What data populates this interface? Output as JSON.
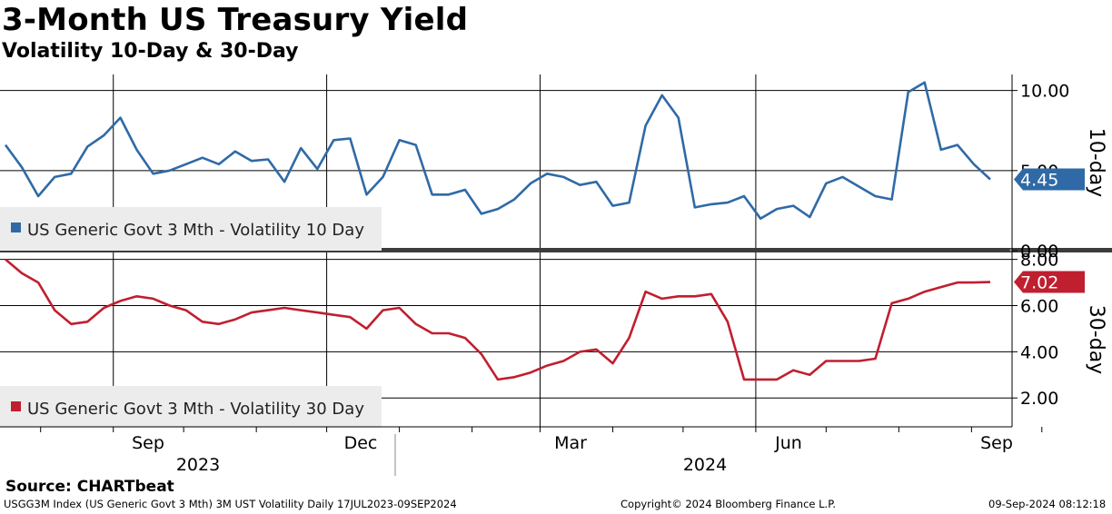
{
  "chart_data": {
    "type": "line",
    "title": "3-Month US Treasury Yield",
    "subtitle": "Volatility 10-Day & 30-Day",
    "x_range": [
      "2023-07-17",
      "2024-09-09"
    ],
    "x_tick_labels": [
      "Sep",
      "Dec",
      "Mar",
      "Jun",
      "Sep"
    ],
    "year_labels": [
      "2023",
      "2024"
    ],
    "panels": [
      {
        "name": "10-day",
        "axis_label": "10-day",
        "ylim": [
          0,
          11
        ],
        "ytick_labels": [
          "10.00",
          "5.00",
          "0.00"
        ],
        "series": [
          {
            "name": "US Generic Govt 3 Mth - Volatility 10 Day",
            "color": "#2f6aa6",
            "last_value_label": "4.45",
            "x": [
              "2023-07-17",
              "2023-07-24",
              "2023-07-31",
              "2023-08-07",
              "2023-08-14",
              "2023-08-21",
              "2023-08-28",
              "2023-09-04",
              "2023-09-11",
              "2023-09-18",
              "2023-09-25",
              "2023-10-02",
              "2023-10-09",
              "2023-10-16",
              "2023-10-23",
              "2023-10-30",
              "2023-11-06",
              "2023-11-13",
              "2023-11-20",
              "2023-11-27",
              "2023-12-04",
              "2023-12-11",
              "2023-12-18",
              "2023-12-25",
              "2024-01-01",
              "2024-01-08",
              "2024-01-15",
              "2024-01-22",
              "2024-01-29",
              "2024-02-05",
              "2024-02-12",
              "2024-02-19",
              "2024-02-26",
              "2024-03-04",
              "2024-03-11",
              "2024-03-18",
              "2024-03-25",
              "2024-04-01",
              "2024-04-08",
              "2024-04-15",
              "2024-04-22",
              "2024-04-29",
              "2024-05-06",
              "2024-05-13",
              "2024-05-20",
              "2024-05-27",
              "2024-06-03",
              "2024-06-10",
              "2024-06-17",
              "2024-06-24",
              "2024-07-01",
              "2024-07-08",
              "2024-07-15",
              "2024-07-22",
              "2024-07-29",
              "2024-08-05",
              "2024-08-12",
              "2024-08-19",
              "2024-08-26",
              "2024-09-02",
              "2024-09-09"
            ],
            "values": [
              6.6,
              5.2,
              3.4,
              4.6,
              4.8,
              6.5,
              7.2,
              8.3,
              6.3,
              4.8,
              5.0,
              5.4,
              5.8,
              5.4,
              6.2,
              5.6,
              5.7,
              4.3,
              6.4,
              5.1,
              6.9,
              7.0,
              3.5,
              4.6,
              6.9,
              6.6,
              3.5,
              3.5,
              3.8,
              2.3,
              2.6,
              3.2,
              4.2,
              4.8,
              4.6,
              4.1,
              4.3,
              2.8,
              3.0,
              7.8,
              9.7,
              8.3,
              2.7,
              2.9,
              3.0,
              3.4,
              2.0,
              2.6,
              2.8,
              2.1,
              4.2,
              4.6,
              4.0,
              3.4,
              3.2,
              9.9,
              10.5,
              6.3,
              6.6,
              5.4,
              4.45
            ]
          }
        ]
      },
      {
        "name": "30-day",
        "axis_label": "30-day",
        "ylim": [
          0.75,
          8.3
        ],
        "ytick_labels": [
          "8.00",
          "6.00",
          "4.00",
          "2.00"
        ],
        "series": [
          {
            "name": "US Generic Govt 3 Mth - Volatility 30 Day",
            "color": "#c01f2f",
            "last_value_label": "7.02",
            "x": [
              "2023-07-17",
              "2023-07-24",
              "2023-07-31",
              "2023-08-07",
              "2023-08-14",
              "2023-08-21",
              "2023-08-28",
              "2023-09-04",
              "2023-09-11",
              "2023-09-18",
              "2023-09-25",
              "2023-10-02",
              "2023-10-09",
              "2023-10-16",
              "2023-10-23",
              "2023-10-30",
              "2023-11-06",
              "2023-11-13",
              "2023-11-20",
              "2023-11-27",
              "2023-12-04",
              "2023-12-11",
              "2023-12-18",
              "2023-12-25",
              "2024-01-01",
              "2024-01-08",
              "2024-01-15",
              "2024-01-22",
              "2024-01-29",
              "2024-02-05",
              "2024-02-12",
              "2024-02-19",
              "2024-02-26",
              "2024-03-04",
              "2024-03-11",
              "2024-03-18",
              "2024-03-25",
              "2024-04-01",
              "2024-04-08",
              "2024-04-15",
              "2024-04-22",
              "2024-04-29",
              "2024-05-06",
              "2024-05-13",
              "2024-05-20",
              "2024-05-27",
              "2024-06-03",
              "2024-06-10",
              "2024-06-17",
              "2024-06-24",
              "2024-07-01",
              "2024-07-08",
              "2024-07-15",
              "2024-07-22",
              "2024-07-29",
              "2024-08-05",
              "2024-08-12",
              "2024-08-19",
              "2024-08-26",
              "2024-09-02",
              "2024-09-09"
            ],
            "values": [
              8.0,
              7.4,
              7.0,
              5.8,
              5.2,
              5.3,
              5.9,
              6.2,
              6.4,
              6.3,
              6.0,
              5.8,
              5.3,
              5.2,
              5.4,
              5.7,
              5.8,
              5.9,
              5.8,
              5.7,
              5.6,
              5.5,
              5.0,
              5.8,
              5.9,
              5.2,
              4.8,
              4.8,
              4.6,
              3.9,
              2.8,
              2.9,
              3.1,
              3.4,
              3.6,
              4.0,
              4.1,
              3.5,
              4.6,
              6.6,
              6.3,
              6.4,
              6.4,
              6.5,
              5.3,
              2.8,
              2.8,
              2.8,
              3.2,
              3.0,
              3.6,
              3.6,
              3.6,
              3.7,
              6.1,
              6.3,
              6.6,
              6.8,
              7.0,
              7.0,
              7.02
            ]
          }
        ]
      }
    ]
  },
  "source": "Source: CHARTbeat",
  "footer": {
    "left": "USGG3M Index (US Generic Govt 3 Mth) 3M UST Volatility  Daily 17JUL2023-09SEP2024",
    "center": "Copyright© 2024 Bloomberg Finance L.P.",
    "right": "09-Sep-2024 08:12:18"
  },
  "colors": {
    "blue": "#2f6aa6",
    "red": "#c01f2f",
    "separator": "#3c3c3c",
    "legend_bg": "#ececec"
  }
}
